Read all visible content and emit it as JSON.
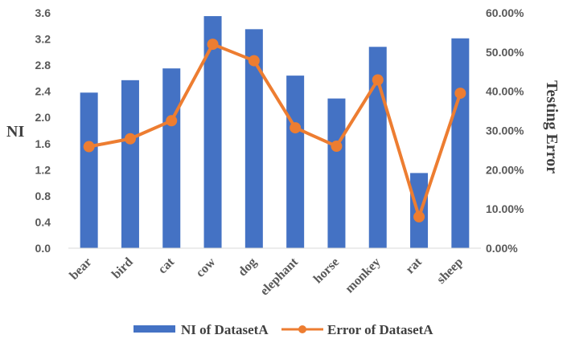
{
  "chart_data": {
    "type": "bar+line",
    "categories": [
      "bear",
      "bird",
      "cat",
      "cow",
      "dog",
      "elephant",
      "horse",
      "monkey",
      "rat",
      "sheep"
    ],
    "series": [
      {
        "name": "NI of DatasetA",
        "type": "bar",
        "axis": "left",
        "color": "#4472C4",
        "values": [
          2.38,
          2.57,
          2.75,
          3.55,
          3.35,
          2.64,
          2.29,
          3.08,
          1.15,
          3.21
        ]
      },
      {
        "name": "Error of DatasetA",
        "type": "line",
        "axis": "right",
        "color": "#ED7D31",
        "values": [
          0.259,
          0.279,
          0.325,
          0.52,
          0.478,
          0.307,
          0.26,
          0.429,
          0.08,
          0.395
        ]
      }
    ],
    "ylabel": "NI",
    "y2label": "Testing Error",
    "ylim": [
      0,
      3.6
    ],
    "y2lim": [
      0,
      0.6
    ],
    "yticks": [
      "0.0",
      "0.4",
      "0.8",
      "1.2",
      "1.6",
      "2.0",
      "2.4",
      "2.8",
      "3.2",
      "3.6"
    ],
    "y2ticks": [
      "0.00%",
      "10.00%",
      "20.00%",
      "30.00%",
      "40.00%",
      "50.00%",
      "60.00%"
    ],
    "grid": false,
    "legend": "bottom"
  }
}
